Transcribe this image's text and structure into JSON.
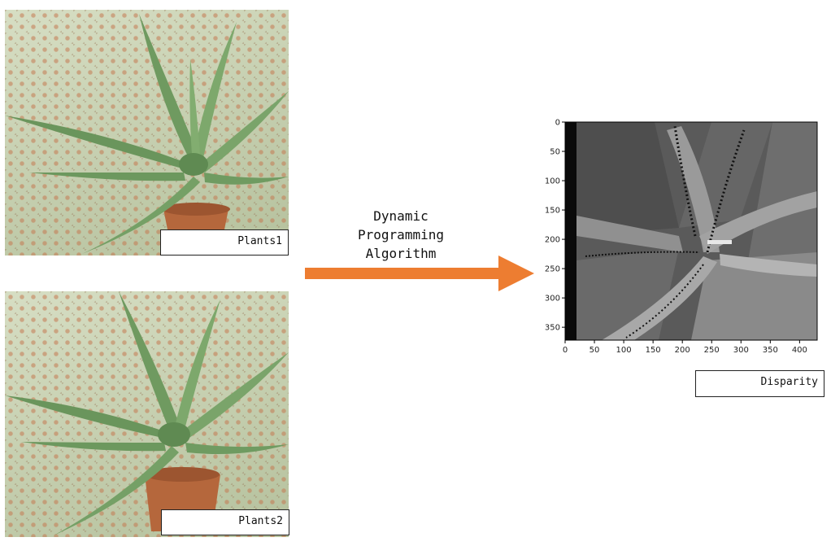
{
  "inputs": [
    {
      "caption": "Plants1"
    },
    {
      "caption": "Plants2"
    }
  ],
  "algorithm": {
    "label_lines": [
      "Dynamic",
      "Programming",
      "Algorithm"
    ],
    "arrow_color": "#ed7d31"
  },
  "output": {
    "caption": "Disparity",
    "x_ticks": [
      0,
      50,
      100,
      150,
      200,
      250,
      300,
      350,
      400
    ],
    "y_ticks": [
      0,
      50,
      100,
      150,
      200,
      250,
      300,
      350
    ],
    "x_range": [
      0,
      430
    ],
    "y_range": [
      0,
      372
    ]
  },
  "colors": {
    "plant": "#7a9e6a",
    "pot": "#b5673c",
    "fabric": "#c9d3b0"
  }
}
